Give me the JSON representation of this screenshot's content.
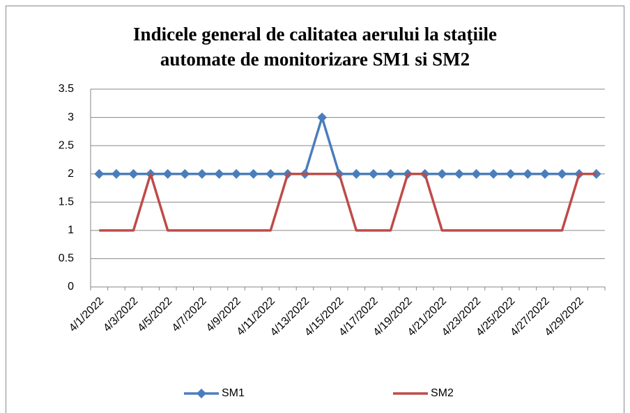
{
  "chart_data": {
    "type": "line",
    "title": [
      "Indicele general de calitatea aerului la staţiile",
      "automate de monitorizare SM1 si SM2"
    ],
    "categories": [
      "4/1/2022",
      null,
      "4/3/2022",
      null,
      "4/5/2022",
      null,
      "4/7/2022",
      null,
      "4/9/2022",
      null,
      "4/11/2022",
      null,
      "4/13/2022",
      null,
      "4/15/2022",
      null,
      "4/17/2022",
      null,
      "4/19/2022",
      null,
      "4/21/2022",
      null,
      "4/23/2022",
      null,
      "4/25/2022",
      null,
      "4/27/2022",
      null,
      "4/29/2022",
      null
    ],
    "series": [
      {
        "name": "SM1",
        "color": "#4a7ebb",
        "marker": "diamond",
        "values": [
          2,
          2,
          2,
          2,
          2,
          2,
          2,
          2,
          2,
          2,
          2,
          2,
          2,
          3,
          2,
          2,
          2,
          2,
          2,
          2,
          2,
          2,
          2,
          2,
          2,
          2,
          2,
          2,
          2,
          2
        ]
      },
      {
        "name": "SM2",
        "color": "#be4b48",
        "values": [
          1,
          1,
          1,
          2,
          1,
          1,
          1,
          1,
          1,
          1,
          1,
          2,
          2,
          2,
          2,
          1,
          1,
          1,
          2,
          2,
          1,
          1,
          1,
          1,
          1,
          1,
          1,
          1,
          2,
          2
        ]
      }
    ],
    "ylim": [
      0,
      3.5
    ],
    "yticks": [
      0,
      0.5,
      1,
      1.5,
      2,
      2.5,
      3,
      3.5
    ],
    "grid": true,
    "legend": "bottom"
  }
}
